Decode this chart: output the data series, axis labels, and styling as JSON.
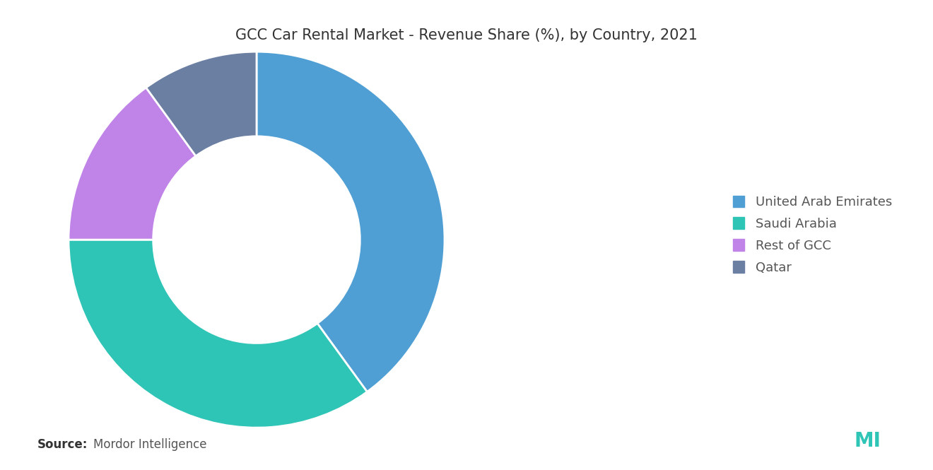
{
  "title": "GCC Car Rental Market - Revenue Share (%), by Country, 2021",
  "labels": [
    "United Arab Emirates",
    "Saudi Arabia",
    "Rest of GCC",
    "Qatar"
  ],
  "values": [
    40,
    35,
    15,
    10
  ],
  "colors": [
    "#4f9fd4",
    "#2ec4b6",
    "#c084e8",
    "#6b7fa3"
  ],
  "source_label": "Source:",
  "source_text": "  Mordor Intelligence",
  "background_color": "#ffffff",
  "title_fontsize": 15,
  "legend_fontsize": 13,
  "source_fontsize": 12,
  "donut_width": 0.45
}
